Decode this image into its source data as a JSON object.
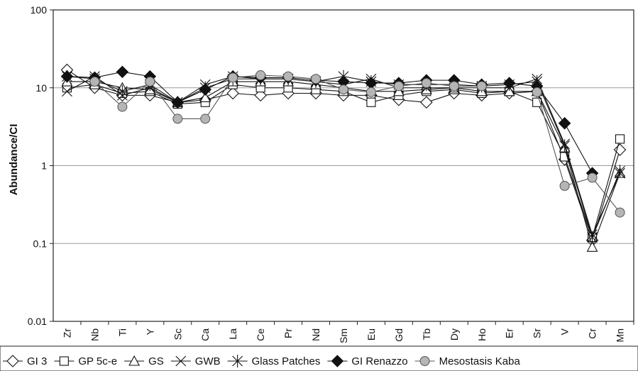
{
  "chart_data": {
    "type": "line",
    "title": "",
    "xlabel": "",
    "ylabel": "Abundance/CI",
    "yscale": "log",
    "ylim": [
      0.01,
      100
    ],
    "y_ticks": [
      "100",
      "10",
      "1",
      "0.1",
      "0.01"
    ],
    "grid": "horizontal",
    "legend_position": "bottom",
    "categories": [
      "Zr",
      "Nb",
      "Ti",
      "Y",
      "Sc",
      "Ca",
      "La",
      "Ce",
      "Pr",
      "Nd",
      "Sm",
      "Eu",
      "Gd",
      "Tb",
      "Dy",
      "Ho",
      "Er",
      "Sr",
      "V",
      "Cr",
      "Mn"
    ],
    "series": [
      {
        "name": "GI 3",
        "marker": "diamond-open",
        "values": [
          17,
          10,
          8,
          8,
          6.5,
          7,
          8.5,
          8,
          8.5,
          8.5,
          8,
          8,
          7,
          6.5,
          8.5,
          8,
          8.5,
          9,
          1.2,
          0.11,
          1.6
        ]
      },
      {
        "name": "GP 5c-e",
        "marker": "square-open",
        "values": [
          10,
          11,
          8.5,
          9,
          6.2,
          6.5,
          11,
          10,
          10,
          9.5,
          9,
          6.5,
          8,
          9,
          9.5,
          8.5,
          9,
          6.5,
          1.3,
          0.12,
          2.2
        ]
      },
      {
        "name": "GS",
        "marker": "triangle-open",
        "values": [
          12,
          12,
          10,
          9.5,
          6.5,
          7.5,
          12,
          12,
          12,
          11,
          10,
          9,
          9,
          9.5,
          10,
          9,
          9,
          9,
          1.7,
          0.09,
          0.8
        ]
      },
      {
        "name": "GWB",
        "marker": "x",
        "values": [
          9,
          14,
          8,
          10,
          6.5,
          11,
          14,
          13,
          13,
          12,
          11,
          13,
          10,
          10,
          10,
          10,
          10,
          13,
          1.9,
          0.13,
          0.8
        ]
      },
      {
        "name": "Glass Patches",
        "marker": "star",
        "values": [
          14,
          13,
          9,
          11,
          6.5,
          10,
          13,
          13,
          13,
          12,
          14,
          12,
          11,
          11,
          11,
          10.5,
          11,
          12,
          1.8,
          0.12,
          0.85
        ]
      },
      {
        "name": "GI Renazzo",
        "marker": "diamond-filled",
        "values": [
          14,
          13.5,
          16,
          14,
          6.5,
          9.5,
          14,
          13.5,
          13.5,
          12.5,
          12,
          11.5,
          11.5,
          12.5,
          12.5,
          11,
          11.5,
          10.5,
          3.5,
          0.8,
          null
        ]
      },
      {
        "name": "Mesostasis Kaba",
        "marker": "circle-filled",
        "values": [
          null,
          12,
          5.7,
          12,
          4,
          4,
          13.5,
          14.5,
          14,
          13,
          9.5,
          8.8,
          10.5,
          11.5,
          10.5,
          10.5,
          null,
          8.8,
          0.55,
          0.7,
          0.25
        ]
      }
    ]
  },
  "legend": {
    "items": [
      "GI 3",
      "GP 5c-e",
      "GS",
      "GWB",
      "Glass Patches",
      "GI Renazzo",
      "Mesostasis Kaba"
    ]
  }
}
